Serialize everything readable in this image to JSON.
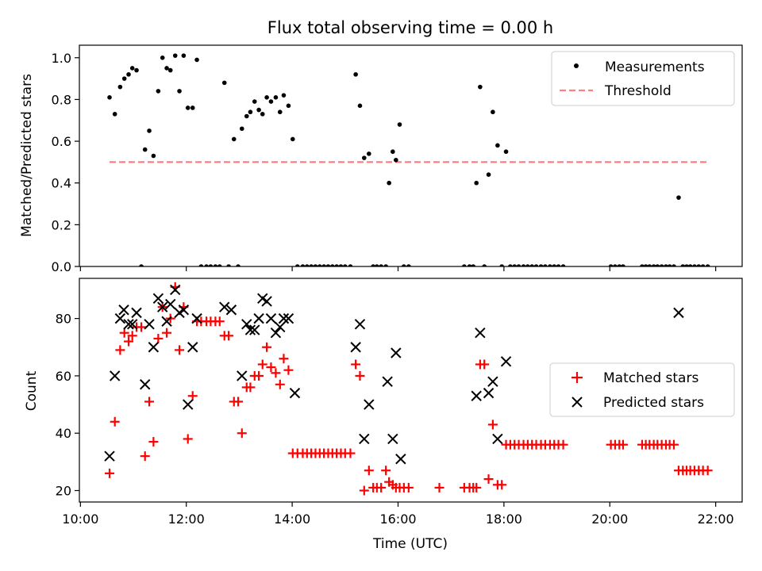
{
  "title": "Flux total observing time = 0.00 h",
  "chart_data": [
    {
      "type": "scatter",
      "ylabel": "Matched/Predicted stars",
      "xlim": [
        9.98,
        22.5
      ],
      "ylim": [
        0,
        1.06
      ],
      "yticks": [
        0.0,
        0.2,
        0.4,
        0.6,
        0.8,
        1.0
      ],
      "ytick_labels": [
        "0.0",
        "0.2",
        "0.4",
        "0.6",
        "0.8",
        "1.0"
      ],
      "legend_position": "top-right",
      "series": [
        {
          "name": "Measurements",
          "marker": "dot",
          "color": "#000000",
          "x": [
            10.55,
            10.65,
            10.75,
            10.83,
            10.91,
            10.98,
            11.06,
            11.15,
            11.22,
            11.3,
            11.38,
            11.47,
            11.55,
            11.63,
            11.7,
            11.79,
            11.87,
            11.95,
            12.03,
            12.12,
            12.2,
            12.28,
            12.38,
            12.46,
            12.55,
            12.63,
            12.72,
            12.8,
            12.9,
            12.98,
            13.05,
            13.14,
            13.21,
            13.29,
            13.37,
            13.44,
            13.52,
            13.6,
            13.69,
            13.77,
            13.84,
            13.93,
            14.01,
            14.1,
            14.2,
            14.28,
            14.36,
            14.44,
            14.52,
            14.6,
            14.68,
            14.76,
            14.84,
            14.92,
            15.0,
            15.1,
            15.2,
            15.28,
            15.36,
            15.45,
            15.53,
            15.6,
            15.68,
            15.77,
            15.83,
            15.9,
            15.96,
            16.03,
            16.11,
            16.2,
            17.25,
            17.35,
            17.42,
            17.48,
            17.55,
            17.63,
            17.71,
            17.79,
            17.88,
            17.96,
            18.04,
            18.12,
            18.2,
            18.28,
            18.37,
            18.45,
            18.53,
            18.61,
            18.7,
            18.78,
            18.87,
            18.95,
            19.03,
            19.12,
            20.02,
            20.1,
            20.18,
            20.25,
            20.61,
            20.68,
            20.75,
            20.83,
            20.9,
            20.98,
            21.06,
            21.13,
            21.21,
            21.3,
            21.38,
            21.45,
            21.52,
            21.6,
            21.68,
            21.76,
            21.85
          ],
          "y": [
            0.81,
            0.73,
            0.86,
            0.9,
            0.92,
            0.95,
            0.94,
            0.0,
            0.56,
            0.65,
            0.53,
            0.84,
            1.0,
            0.95,
            0.94,
            1.01,
            0.84,
            1.01,
            0.76,
            0.76,
            0.99,
            0.0,
            0.0,
            0.0,
            0.0,
            0.0,
            0.88,
            0.0,
            0.61,
            0.0,
            0.66,
            0.72,
            0.74,
            0.79,
            0.75,
            0.73,
            0.81,
            0.79,
            0.81,
            0.74,
            0.82,
            0.77,
            0.61,
            0.0,
            0.0,
            0.0,
            0.0,
            0.0,
            0.0,
            0.0,
            0.0,
            0.0,
            0.0,
            0.0,
            0.0,
            0.0,
            0.92,
            0.77,
            0.52,
            0.54,
            0.0,
            0.0,
            0.0,
            0.0,
            0.4,
            0.55,
            0.51,
            0.68,
            0.0,
            0.0,
            0.0,
            0.0,
            0.0,
            0.4,
            0.86,
            0.0,
            0.44,
            0.74,
            0.58,
            0.0,
            0.55,
            0.0,
            0.0,
            0.0,
            0.0,
            0.0,
            0.0,
            0.0,
            0.0,
            0.0,
            0.0,
            0.0,
            0.0,
            0.0,
            0.0,
            0.0,
            0.0,
            0.0,
            0.0,
            0.0,
            0.0,
            0.0,
            0.0,
            0.0,
            0.0,
            0.0,
            0.0,
            0.33,
            0.0,
            0.0,
            0.0,
            0.0,
            0.0,
            0.0,
            0.0
          ]
        },
        {
          "name": "Threshold",
          "marker": "dashed-line",
          "color": "#ff7f7f",
          "x": [
            10.55,
            21.85
          ],
          "y": [
            0.5,
            0.5
          ]
        }
      ]
    },
    {
      "type": "scatter",
      "xlabel": "Time (UTC)",
      "ylabel": "Count",
      "xlim": [
        9.98,
        22.5
      ],
      "ylim": [
        16,
        94
      ],
      "yticks": [
        20,
        40,
        60,
        80
      ],
      "ytick_labels": [
        "20",
        "40",
        "60",
        "80"
      ],
      "xticks": [
        10,
        12,
        14,
        16,
        18,
        20,
        22
      ],
      "xtick_labels": [
        "10:00",
        "12:00",
        "14:00",
        "16:00",
        "18:00",
        "20:00",
        "22:00"
      ],
      "legend_position": "center-right",
      "series": [
        {
          "name": "Matched stars",
          "marker": "plus",
          "color": "#ff0000",
          "x": [
            10.55,
            10.65,
            10.75,
            10.83,
            10.91,
            10.98,
            11.06,
            11.15,
            11.22,
            11.3,
            11.38,
            11.47,
            11.55,
            11.63,
            11.7,
            11.79,
            11.87,
            11.95,
            12.03,
            12.12,
            12.2,
            12.28,
            12.38,
            12.46,
            12.55,
            12.63,
            12.72,
            12.8,
            12.9,
            12.98,
            13.05,
            13.14,
            13.21,
            13.29,
            13.37,
            13.44,
            13.52,
            13.6,
            13.69,
            13.77,
            13.84,
            13.93,
            14.01,
            14.1,
            14.2,
            14.28,
            14.36,
            14.44,
            14.52,
            14.6,
            14.68,
            14.76,
            14.84,
            14.92,
            15.0,
            15.1,
            15.2,
            15.28,
            15.36,
            15.45,
            15.53,
            15.6,
            15.68,
            15.77,
            15.83,
            15.9,
            15.96,
            16.03,
            16.11,
            16.2,
            16.78,
            17.25,
            17.35,
            17.42,
            17.48,
            17.55,
            17.63,
            17.71,
            17.79,
            17.88,
            17.96,
            18.04,
            18.12,
            18.2,
            18.28,
            18.37,
            18.45,
            18.53,
            18.61,
            18.7,
            18.78,
            18.87,
            18.95,
            19.03,
            19.12,
            20.02,
            20.1,
            20.18,
            20.25,
            20.61,
            20.68,
            20.75,
            20.83,
            20.9,
            20.98,
            21.06,
            21.13,
            21.21,
            21.3,
            21.38,
            21.45,
            21.52,
            21.6,
            21.68,
            21.76,
            21.85
          ],
          "y": [
            26,
            44,
            69,
            75,
            72,
            74,
            77,
            77,
            32,
            51,
            37,
            73,
            84,
            75,
            80,
            91,
            69,
            84,
            38,
            53,
            79,
            79,
            79,
            79,
            79,
            79,
            74,
            74,
            51,
            51,
            40,
            56,
            56,
            60,
            60,
            64,
            70,
            63,
            61,
            57,
            66,
            62,
            33,
            33,
            33,
            33,
            33,
            33,
            33,
            33,
            33,
            33,
            33,
            33,
            33,
            33,
            64,
            60,
            20,
            27,
            21,
            21,
            21,
            27,
            23,
            22,
            21,
            21,
            21,
            21,
            21,
            21,
            21,
            21,
            21,
            64,
            64,
            24,
            43,
            22,
            22,
            36,
            36,
            36,
            36,
            36,
            36,
            36,
            36,
            36,
            36,
            36,
            36,
            36,
            36,
            36,
            36,
            36,
            36,
            36,
            36,
            36,
            36,
            36,
            36,
            36,
            36,
            36,
            27,
            27,
            27,
            27,
            27,
            27,
            27,
            27
          ]
        },
        {
          "name": "Predicted stars",
          "marker": "cross",
          "color": "#000000",
          "x": [
            10.55,
            10.65,
            10.75,
            10.82,
            10.91,
            10.98,
            11.06,
            11.22,
            11.3,
            11.38,
            11.47,
            11.55,
            11.63,
            11.7,
            11.79,
            11.87,
            11.95,
            12.03,
            12.12,
            12.2,
            12.72,
            12.85,
            13.05,
            13.14,
            13.21,
            13.29,
            13.37,
            13.44,
            13.52,
            13.6,
            13.69,
            13.77,
            13.84,
            13.93,
            14.05,
            15.2,
            15.28,
            15.36,
            15.45,
            15.8,
            15.9,
            15.96,
            16.05,
            17.48,
            17.55,
            17.71,
            17.79,
            17.88,
            18.04,
            21.3
          ],
          "y": [
            32,
            60,
            80,
            83,
            78,
            78,
            82,
            57,
            78,
            70,
            87,
            84,
            79,
            85,
            90,
            82,
            83,
            50,
            70,
            80,
            84,
            83,
            60,
            78,
            76,
            76,
            80,
            87,
            86,
            80,
            75,
            77,
            80,
            80,
            54,
            70,
            78,
            38,
            50,
            58,
            38,
            68,
            31,
            53,
            75,
            54,
            58,
            38,
            65,
            82
          ]
        }
      ]
    }
  ]
}
